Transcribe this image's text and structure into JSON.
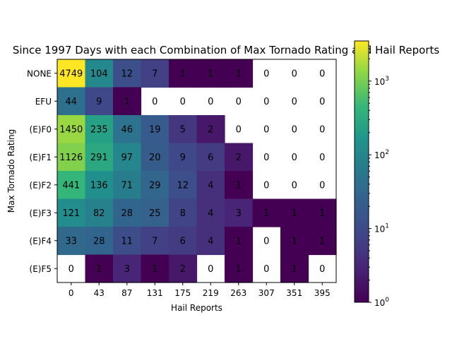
{
  "chart_data": {
    "type": "heatmap",
    "title": "Since 1997 Days with each Combination of Max Tornado Rating and Hail Reports",
    "xlabel": "Hail Reports",
    "ylabel": "Max Tornado Rating",
    "x_categories": [
      "0",
      "43",
      "87",
      "131",
      "175",
      "219",
      "263",
      "307",
      "351",
      "395"
    ],
    "y_categories": [
      "NONE",
      "EFU",
      "(E)F0",
      "(E)F1",
      "(E)F2",
      "(E)F3",
      "(E)F4",
      "(E)F5"
    ],
    "values": [
      [
        4749,
        104,
        12,
        7,
        1,
        1,
        1,
        0,
        0,
        0
      ],
      [
        44,
        9,
        1,
        0,
        0,
        0,
        0,
        0,
        0,
        0
      ],
      [
        1450,
        235,
        46,
        19,
        5,
        2,
        0,
        0,
        0,
        0
      ],
      [
        1126,
        291,
        97,
        20,
        9,
        6,
        2,
        0,
        0,
        0
      ],
      [
        441,
        136,
        71,
        29,
        12,
        4,
        1,
        0,
        0,
        0
      ],
      [
        121,
        82,
        28,
        25,
        8,
        4,
        3,
        1,
        1,
        1
      ],
      [
        33,
        28,
        11,
        7,
        6,
        4,
        1,
        0,
        1,
        1
      ],
      [
        0,
        1,
        3,
        1,
        2,
        0,
        1,
        0,
        1,
        0
      ]
    ],
    "colorscale": "viridis",
    "color_scale_type": "log",
    "color_range": [
      1,
      3500
    ],
    "zero_cells": "blank",
    "colorbar_ticks": [
      {
        "value": 1,
        "label": "10",
        "exp": "0"
      },
      {
        "value": 10,
        "label": "10",
        "exp": "1"
      },
      {
        "value": 100,
        "label": "10",
        "exp": "2"
      },
      {
        "value": 1000,
        "label": "10",
        "exp": "3"
      }
    ]
  }
}
